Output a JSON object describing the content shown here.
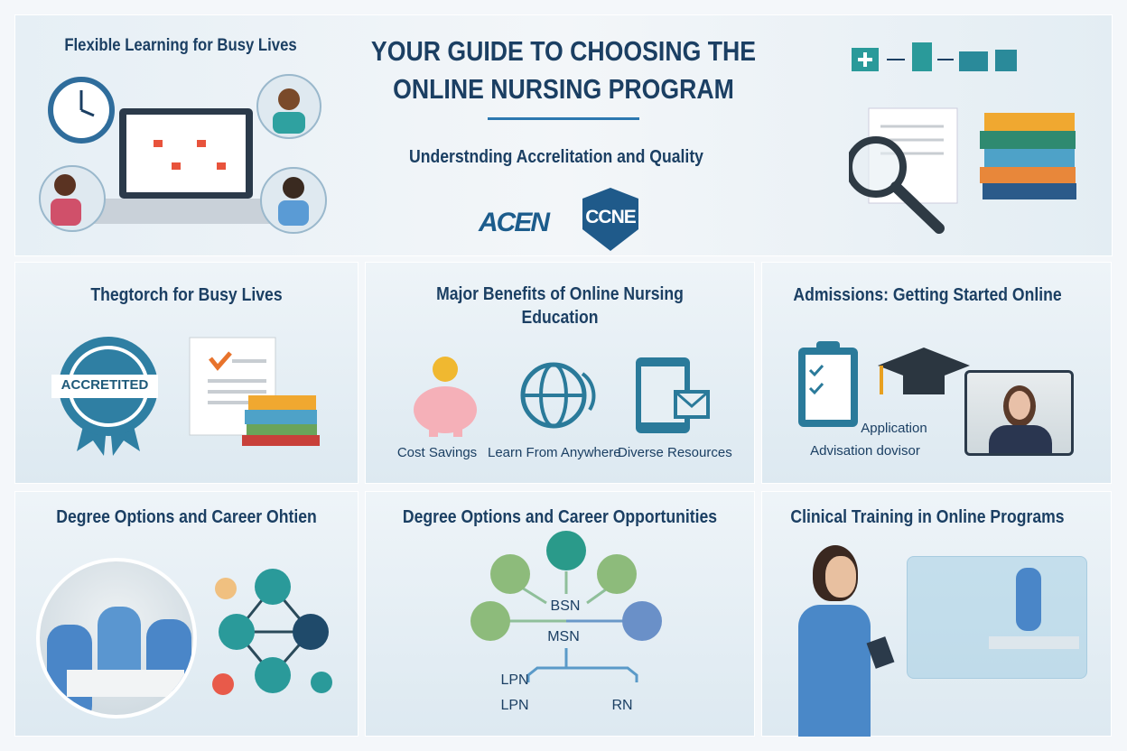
{
  "header": {
    "title_line1": "YOUR GUIDE TO CHOOSING THE",
    "title_line2": "ONLINE NURSING PROGRAM",
    "subtitle": "Understnding Accrelitation and Quality",
    "logos": [
      "ACEN",
      "CCNE"
    ]
  },
  "top_left": {
    "title": "Flexible Learning for Busy Lives"
  },
  "panels": {
    "accreditation": {
      "title": "Thegtorch for Busy Lives",
      "badge": "ACCRETITED"
    },
    "benefits": {
      "title": "Major Benefits of Online Nursing Education",
      "items": [
        "Cost Savings",
        "Learn From Anywhere",
        "Diverse Resources"
      ]
    },
    "admissions": {
      "title": "Admissions: Getting Started Online",
      "label1": "Application",
      "label2": "Advisation dovisor"
    },
    "degree_left": {
      "title": "Degree Options and Career Ohtien"
    },
    "degree_tree": {
      "title": "Degree Options and Career Opportunities",
      "nodes": [
        "BSN",
        "MSN",
        "LPN",
        "LPN",
        "RN"
      ]
    },
    "clinical": {
      "title": "Clinical Training in Online Programs"
    }
  },
  "colors": {
    "navy": "#1b3f63",
    "teal": "#2f7fa3",
    "green": "#8dbb7b",
    "accent": "#e8732c"
  }
}
